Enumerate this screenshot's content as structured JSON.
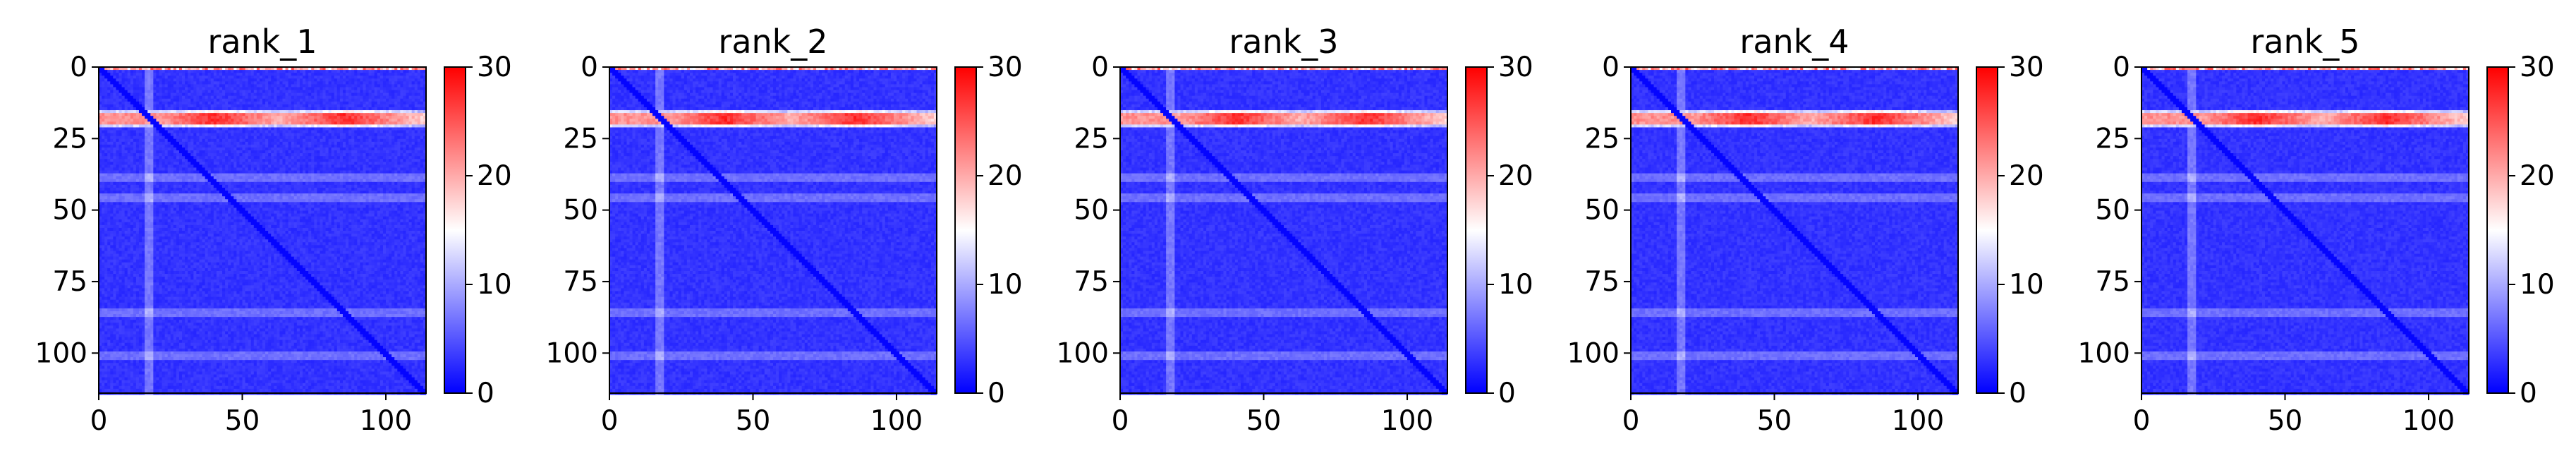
{
  "chart_data": [
    {
      "type": "heatmap",
      "title": "rank_1",
      "xlabel": "",
      "ylabel": "",
      "xlim": [
        0,
        114
      ],
      "ylim": [
        114,
        0
      ],
      "x_ticks": [
        0,
        50,
        100
      ],
      "y_ticks": [
        0,
        25,
        50,
        75,
        100
      ],
      "colorbar": {
        "range": [
          0,
          30
        ],
        "ticks": [
          0,
          10,
          20,
          30
        ],
        "colors": [
          "#0000ff",
          "#ffffff",
          "#ff0000"
        ]
      },
      "grid": false,
      "structure": {
        "high_band_rows": [
          15,
          20
        ],
        "red_hotspots_x": [
          40,
          85
        ],
        "diagonal": true,
        "light_column_x": 17,
        "light_rows": [
          38,
          45,
          85,
          100
        ]
      }
    },
    {
      "type": "heatmap",
      "title": "rank_2",
      "xlabel": "",
      "ylabel": "",
      "xlim": [
        0,
        114
      ],
      "ylim": [
        114,
        0
      ],
      "x_ticks": [
        0,
        50,
        100
      ],
      "y_ticks": [
        0,
        25,
        50,
        75,
        100
      ],
      "colorbar": {
        "range": [
          0,
          30
        ],
        "ticks": [
          0,
          10,
          20,
          30
        ],
        "colors": [
          "#0000ff",
          "#ffffff",
          "#ff0000"
        ]
      },
      "grid": false,
      "structure": {
        "high_band_rows": [
          15,
          20
        ],
        "red_hotspots_x": [
          40,
          85
        ],
        "diagonal": true,
        "light_column_x": 17,
        "light_rows": [
          38,
          45,
          85,
          100
        ]
      }
    },
    {
      "type": "heatmap",
      "title": "rank_3",
      "xlabel": "",
      "ylabel": "",
      "xlim": [
        0,
        114
      ],
      "ylim": [
        114,
        0
      ],
      "x_ticks": [
        0,
        50,
        100
      ],
      "y_ticks": [
        0,
        25,
        50,
        75,
        100
      ],
      "colorbar": {
        "range": [
          0,
          30
        ],
        "ticks": [
          0,
          10,
          20,
          30
        ],
        "colors": [
          "#0000ff",
          "#ffffff",
          "#ff0000"
        ]
      },
      "grid": false,
      "structure": {
        "high_band_rows": [
          15,
          20
        ],
        "red_hotspots_x": [
          40,
          85
        ],
        "diagonal": true,
        "light_column_x": 17,
        "light_rows": [
          38,
          45,
          85,
          100
        ]
      }
    },
    {
      "type": "heatmap",
      "title": "rank_4",
      "xlabel": "",
      "ylabel": "",
      "xlim": [
        0,
        114
      ],
      "ylim": [
        114,
        0
      ],
      "x_ticks": [
        0,
        50,
        100
      ],
      "y_ticks": [
        0,
        25,
        50,
        75,
        100
      ],
      "colorbar": {
        "range": [
          0,
          30
        ],
        "ticks": [
          0,
          10,
          20,
          30
        ],
        "colors": [
          "#0000ff",
          "#ffffff",
          "#ff0000"
        ]
      },
      "grid": false,
      "structure": {
        "high_band_rows": [
          15,
          20
        ],
        "red_hotspots_x": [
          40,
          85
        ],
        "diagonal": true,
        "light_column_x": 17,
        "light_rows": [
          38,
          45,
          85,
          100
        ]
      }
    },
    {
      "type": "heatmap",
      "title": "rank_5",
      "xlabel": "",
      "ylabel": "",
      "xlim": [
        0,
        114
      ],
      "ylim": [
        114,
        0
      ],
      "x_ticks": [
        0,
        50,
        100
      ],
      "y_ticks": [
        0,
        25,
        50,
        75,
        100
      ],
      "colorbar": {
        "range": [
          0,
          30
        ],
        "ticks": [
          0,
          10,
          20,
          30
        ],
        "colors": [
          "#0000ff",
          "#ffffff",
          "#ff0000"
        ]
      },
      "grid": false,
      "structure": {
        "high_band_rows": [
          15,
          20
        ],
        "red_hotspots_x": [
          40,
          85
        ],
        "diagonal": true,
        "light_column_x": 17,
        "light_rows": [
          38,
          45,
          85,
          100
        ]
      }
    }
  ]
}
